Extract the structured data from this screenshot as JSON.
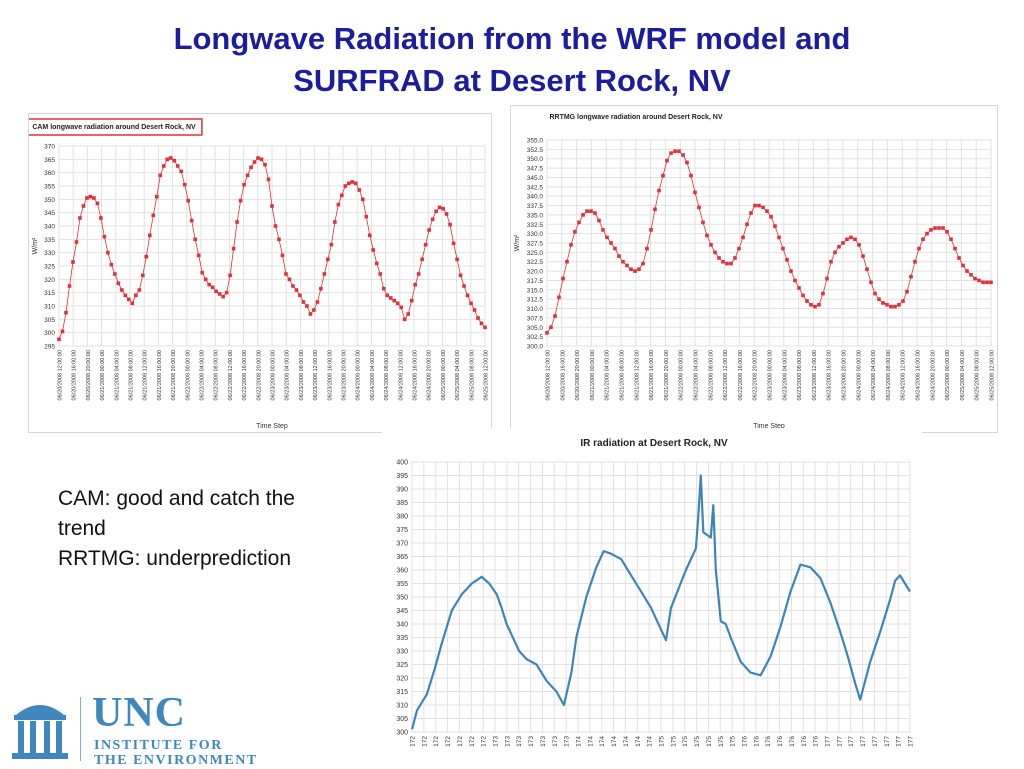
{
  "slide": {
    "title_line1": "Longwave Radiation from the WRF model and",
    "title_line2": "SURFRAD at Desert Rock, NV",
    "note_line1": "CAM: good and catch the",
    "note_line2": "trend",
    "note_line3": "RRTMG: underprediction"
  },
  "logo": {
    "main": "UNC",
    "sub1": "INSTITUTE FOR",
    "sub2": "THE ENVIRONMENT",
    "color": "#3f88be"
  },
  "chart_data": [
    {
      "id": "cam",
      "type": "line",
      "title": "CAM longwave radiation around Desert Rock, NV",
      "title_boxed": true,
      "xlabel": "Time Step",
      "ylabel": "W/m²",
      "ylim": [
        295,
        370
      ],
      "yticks": [
        295,
        300,
        305,
        310,
        315,
        320,
        325,
        330,
        335,
        340,
        345,
        350,
        355,
        360,
        365,
        370
      ],
      "xticks": [
        "06/20/2008 12:00:00",
        "06/20/2008 16:00:00",
        "06/20/2008 20:00:00",
        "06/21/2008 00:00:00",
        "06/21/2008 04:00:00",
        "06/21/2008 08:00:00",
        "06/21/2008 12:00:00",
        "06/21/2008 16:00:00",
        "06/21/2008 20:00:00",
        "06/22/2008 00:00:00",
        "06/22/2008 04:00:00",
        "06/22/2008 08:00:00",
        "06/22/2008 12:00:00",
        "06/22/2008 16:00:00",
        "06/22/2008 20:00:00",
        "06/23/2008 00:00:00",
        "06/23/2008 04:00:00",
        "06/23/2008 08:00:00",
        "06/23/2008 12:00:00",
        "06/23/2008 16:00:00",
        "06/23/2008 20:00:00",
        "06/24/2008 00:00:00",
        "06/24/2008 04:00:00",
        "06/24/2008 08:00:00",
        "06/24/2008 12:00:00",
        "06/24/2008 16:00:00",
        "06/24/2008 20:00:00",
        "06/25/2008 00:00:00",
        "06/25/2008 04:00:00",
        "06/25/2008 08:00:00",
        "06/25/2008 12:00:00"
      ],
      "grid": true,
      "color": "#e0303a",
      "values": [
        297.5,
        300.5,
        307.5,
        317.5,
        326.5,
        334,
        343,
        347.5,
        350.5,
        351,
        350.5,
        348.5,
        343,
        336,
        330,
        325.5,
        322,
        318.5,
        316,
        314,
        312.5,
        311,
        314,
        316,
        321.5,
        328.5,
        336.5,
        344,
        351,
        359,
        362.5,
        365,
        365.5,
        364.5,
        362.5,
        360.5,
        355.5,
        349.5,
        342,
        335,
        329,
        322.5,
        320,
        318,
        317,
        315.5,
        314.5,
        313.5,
        315,
        321.5,
        331.5,
        341.5,
        349.5,
        355.5,
        359,
        362,
        364,
        365.5,
        365,
        363,
        357.5,
        347.5,
        340,
        335,
        329,
        322,
        320,
        317.5,
        316,
        314,
        311.5,
        310,
        307,
        308.5,
        311.5,
        316.5,
        322,
        327.5,
        333,
        341.5,
        348,
        351.5,
        355,
        356,
        356.5,
        356,
        353.5,
        350,
        343.5,
        336.5,
        331,
        326,
        322,
        316.5,
        314,
        313,
        312,
        311,
        309.5,
        305,
        307,
        312,
        318,
        322,
        327.5,
        333,
        338.5,
        342.5,
        345.5,
        347,
        346.5,
        344.5,
        340.5,
        333.5,
        327.5,
        321.5,
        317.5,
        314,
        311,
        308.5,
        305.5,
        303.5,
        302
      ]
    },
    {
      "id": "rrtmg",
      "type": "line",
      "title": "RRTMG longwave radiation around Desert Rock, NV",
      "xlabel": "Time Step",
      "ylabel": "W/m²",
      "ylim": [
        300,
        355
      ],
      "yticks": [
        300.0,
        302.5,
        305.0,
        307.5,
        310.0,
        312.5,
        315.0,
        317.5,
        320.0,
        322.5,
        325.0,
        327.5,
        330.0,
        332.5,
        335.0,
        337.5,
        340.0,
        342.5,
        345.0,
        347.5,
        350.0,
        352.5,
        355.0
      ],
      "xticks": [
        "06/20/2008 12:00:00",
        "06/20/2008 16:00:00",
        "06/20/2008 20:00:00",
        "06/21/2008 00:00:00",
        "06/21/2008 04:00:00",
        "06/21/2008 08:00:00",
        "06/21/2008 12:00:00",
        "06/21/2008 16:00:00",
        "06/21/2008 20:00:00",
        "06/22/2008 00:00:00",
        "06/22/2008 04:00:00",
        "06/22/2008 08:00:00",
        "06/22/2008 12:00:00",
        "06/22/2008 16:00:00",
        "06/22/2008 20:00:00",
        "06/23/2008 00:00:00",
        "06/23/2008 04:00:00",
        "06/23/2008 08:00:00",
        "06/23/2008 12:00:00",
        "06/23/2008 16:00:00",
        "06/23/2008 20:00:00",
        "06/24/2008 00:00:00",
        "06/24/2008 04:00:00",
        "06/24/2008 08:00:00",
        "06/24/2008 12:00:00",
        "06/24/2008 16:00:00",
        "06/24/2008 20:00:00",
        "06/25/2008 00:00:00",
        "06/25/2008 04:00:00",
        "06/25/2008 08:00:00",
        "06/25/2008 12:00:00"
      ],
      "grid": true,
      "color": "#e0303a",
      "values": [
        303.5,
        305,
        308,
        313,
        318,
        322.5,
        327,
        330.5,
        333,
        335,
        336,
        336,
        335.5,
        333.5,
        331,
        329,
        327.5,
        326,
        324,
        322.5,
        321.5,
        320.5,
        320,
        320.5,
        322,
        326,
        331,
        336.5,
        341.5,
        345.5,
        349.5,
        351.5,
        352,
        352,
        351,
        349,
        345.5,
        341,
        337,
        333,
        329.5,
        327,
        325,
        323.5,
        322.5,
        322,
        322,
        323.5,
        326,
        329,
        332.5,
        335.5,
        337.5,
        337.5,
        337,
        336,
        334.5,
        332,
        329,
        326,
        323,
        320,
        317.5,
        315.5,
        313.5,
        312,
        311,
        310.5,
        311,
        314,
        318,
        322.5,
        325,
        326.5,
        327.5,
        328.5,
        329,
        328.5,
        327,
        324,
        320.5,
        317,
        314,
        312.5,
        311.5,
        311,
        310.5,
        310.5,
        311,
        312,
        314.5,
        318.5,
        322.5,
        326,
        328.5,
        330,
        331,
        331.5,
        331.5,
        331.5,
        330.5,
        328.5,
        326,
        323.5,
        321.5,
        320,
        319,
        318,
        317.5,
        317,
        317,
        317
      ]
    },
    {
      "id": "ir",
      "type": "line",
      "title": "IR radiation at Desert Rock, NV",
      "ylim": [
        300,
        400
      ],
      "yticks": [
        300,
        305,
        310,
        315,
        320,
        325,
        330,
        335,
        340,
        345,
        350,
        355,
        360,
        365,
        370,
        375,
        380,
        385,
        390,
        395,
        400
      ],
      "xticks": [
        "172",
        "172",
        "172",
        "172",
        "172",
        "172",
        "172",
        "173",
        "173",
        "173",
        "173",
        "173",
        "173",
        "173",
        "174",
        "174",
        "174",
        "174",
        "174",
        "174",
        "174",
        "175",
        "175",
        "175",
        "175",
        "175",
        "175",
        "175",
        "176",
        "176",
        "176",
        "176",
        "176",
        "176",
        "176",
        "177",
        "177",
        "177",
        "177",
        "177",
        "177",
        "177",
        "177"
      ],
      "grid": true,
      "color": "#3d85b8",
      "points": [
        [
          0,
          301
        ],
        [
          0.01,
          308
        ],
        [
          0.03,
          314
        ],
        [
          0.045,
          323
        ],
        [
          0.06,
          333
        ],
        [
          0.08,
          345
        ],
        [
          0.1,
          351
        ],
        [
          0.12,
          355
        ],
        [
          0.14,
          357.5
        ],
        [
          0.155,
          355
        ],
        [
          0.17,
          351
        ],
        [
          0.18,
          346
        ],
        [
          0.19,
          340
        ],
        [
          0.2,
          336
        ],
        [
          0.215,
          330
        ],
        [
          0.23,
          327
        ],
        [
          0.25,
          325
        ],
        [
          0.27,
          319
        ],
        [
          0.29,
          315
        ],
        [
          0.305,
          310
        ],
        [
          0.32,
          322
        ],
        [
          0.33,
          335
        ],
        [
          0.35,
          350
        ],
        [
          0.37,
          361
        ],
        [
          0.385,
          367
        ],
        [
          0.4,
          366
        ],
        [
          0.42,
          364
        ],
        [
          0.44,
          358
        ],
        [
          0.46,
          352
        ],
        [
          0.48,
          346
        ],
        [
          0.5,
          338
        ],
        [
          0.51,
          334
        ],
        [
          0.52,
          346
        ],
        [
          0.55,
          360
        ],
        [
          0.57,
          368
        ],
        [
          0.575,
          380
        ],
        [
          0.58,
          395
        ],
        [
          0.585,
          374
        ],
        [
          0.6,
          372
        ],
        [
          0.605,
          384
        ],
        [
          0.61,
          360
        ],
        [
          0.62,
          341
        ],
        [
          0.63,
          340
        ],
        [
          0.64,
          335
        ],
        [
          0.66,
          326
        ],
        [
          0.68,
          322
        ],
        [
          0.7,
          321
        ],
        [
          0.72,
          328
        ],
        [
          0.74,
          339
        ],
        [
          0.76,
          352
        ],
        [
          0.78,
          362
        ],
        [
          0.8,
          361
        ],
        [
          0.82,
          357
        ],
        [
          0.84,
          348
        ],
        [
          0.86,
          337
        ],
        [
          0.875,
          328
        ],
        [
          0.89,
          318
        ],
        [
          0.9,
          312
        ],
        [
          0.92,
          326
        ],
        [
          0.94,
          337
        ],
        [
          0.96,
          349
        ],
        [
          0.97,
          356
        ],
        [
          0.98,
          358
        ],
        [
          0.99,
          355
        ],
        [
          1.0,
          352
        ]
      ],
      "points_note": "x normalized 0-1 across axis; y in W/m2"
    }
  ]
}
